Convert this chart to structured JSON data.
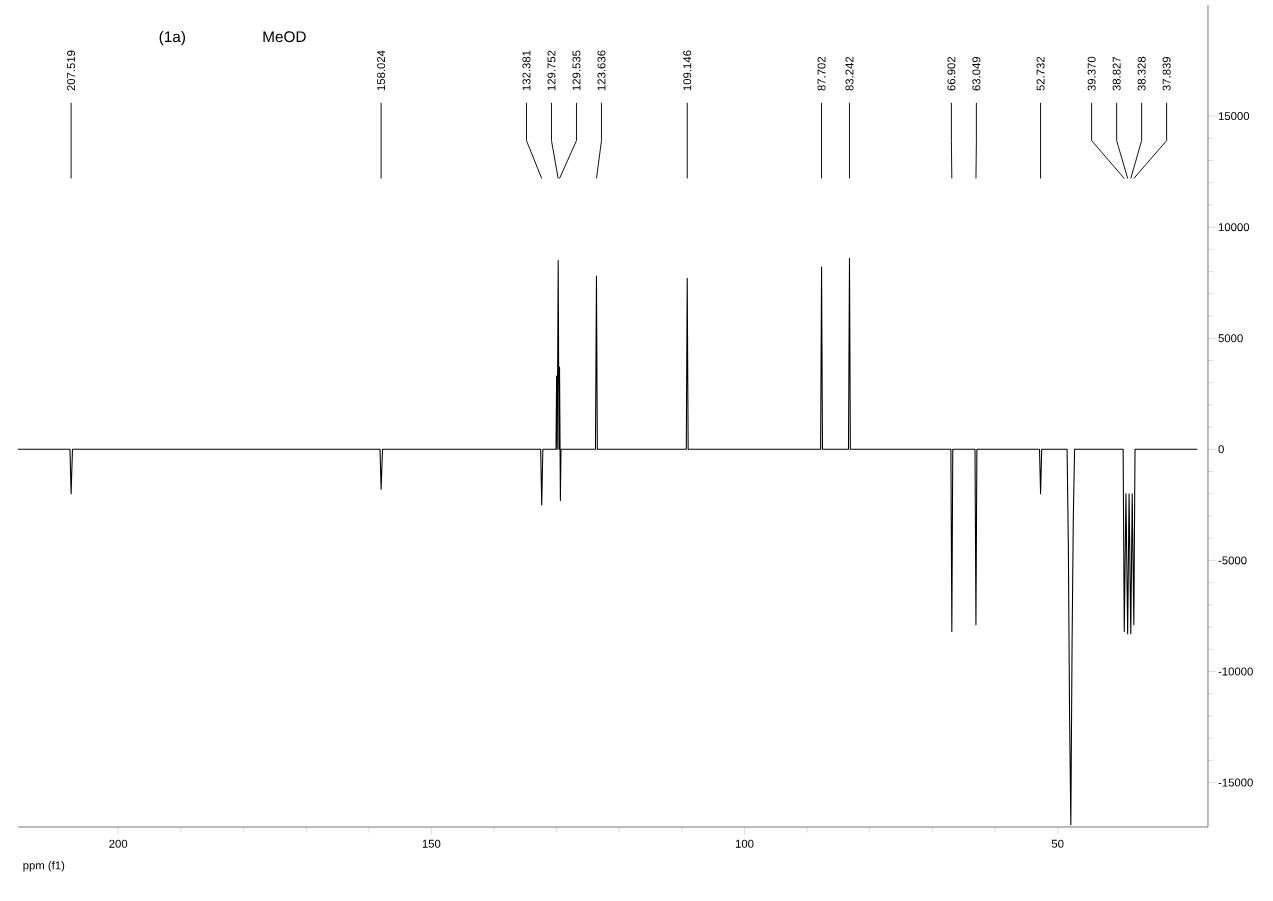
{
  "chart_data": {
    "type": "line",
    "xlabel": "ppm (f1)",
    "xlim": [
      216,
      26
    ],
    "xticks": [
      200,
      150,
      100,
      50
    ],
    "ylim": [
      -17000,
      20000
    ],
    "yticks": [
      -15000,
      -10000,
      -5000,
      0,
      5000,
      10000,
      15000
    ],
    "series": [
      {
        "color": "#000000",
        "x": [
          216,
          207.7,
          207.52,
          207.3,
          158.2,
          158.02,
          157.8,
          132.55,
          132.38,
          132.2,
          130.1,
          130.0,
          129.9,
          129.75,
          129.62,
          129.535,
          129.45,
          129.4,
          129.3,
          123.8,
          123.64,
          123.5,
          109.3,
          109.15,
          109.0,
          87.85,
          87.7,
          87.55,
          83.4,
          83.24,
          83.1,
          67.05,
          66.9,
          66.75,
          63.2,
          63.05,
          62.9,
          52.9,
          52.73,
          52.55,
          48.5,
          48.3,
          48.1,
          47.9,
          47.7,
          47.5,
          47.3,
          39.55,
          39.37,
          39.1,
          38.827,
          38.6,
          38.328,
          38.1,
          37.839,
          37.65,
          27.7
        ],
        "values": [
          0,
          0,
          -2000,
          0,
          0,
          -1800,
          0,
          0,
          -2500,
          0,
          0,
          3300,
          0,
          8500,
          0,
          3700,
          0,
          -2300,
          0,
          0,
          7800,
          0,
          0,
          7700,
          0,
          0,
          8200,
          0,
          0,
          8600,
          0,
          0,
          -8200,
          0,
          0,
          -7900,
          0,
          0,
          -2000,
          0,
          0,
          -4200,
          -12000,
          -16900,
          -8700,
          -3000,
          0,
          0,
          -8200,
          -2000,
          -8300,
          -2000,
          -8300,
          -2000,
          -7900,
          0,
          0
        ]
      }
    ],
    "annotations": [
      "(1a)",
      "MeOD",
      {
        "text": "207.519",
        "x": 207.519
      },
      {
        "text": "158.024",
        "x": 158.024
      },
      {
        "text": "132.381",
        "x": 132.381
      },
      {
        "text": "129.752",
        "x": 129.752
      },
      {
        "text": "129.535",
        "x": 129.535
      },
      {
        "text": "123.636",
        "x": 123.636
      },
      {
        "text": "109.146",
        "x": 109.146
      },
      {
        "text": "87.702",
        "x": 87.702
      },
      {
        "text": "83.242",
        "x": 83.242
      },
      {
        "text": "66.902",
        "x": 66.902
      },
      {
        "text": "63.049",
        "x": 63.049
      },
      {
        "text": "52.732",
        "x": 52.732
      },
      {
        "text": "39.370",
        "x": 39.37
      },
      {
        "text": "38.827",
        "x": 38.827
      },
      {
        "text": "38.328",
        "x": 38.328
      },
      {
        "text": "37.839",
        "x": 37.839
      }
    ]
  }
}
